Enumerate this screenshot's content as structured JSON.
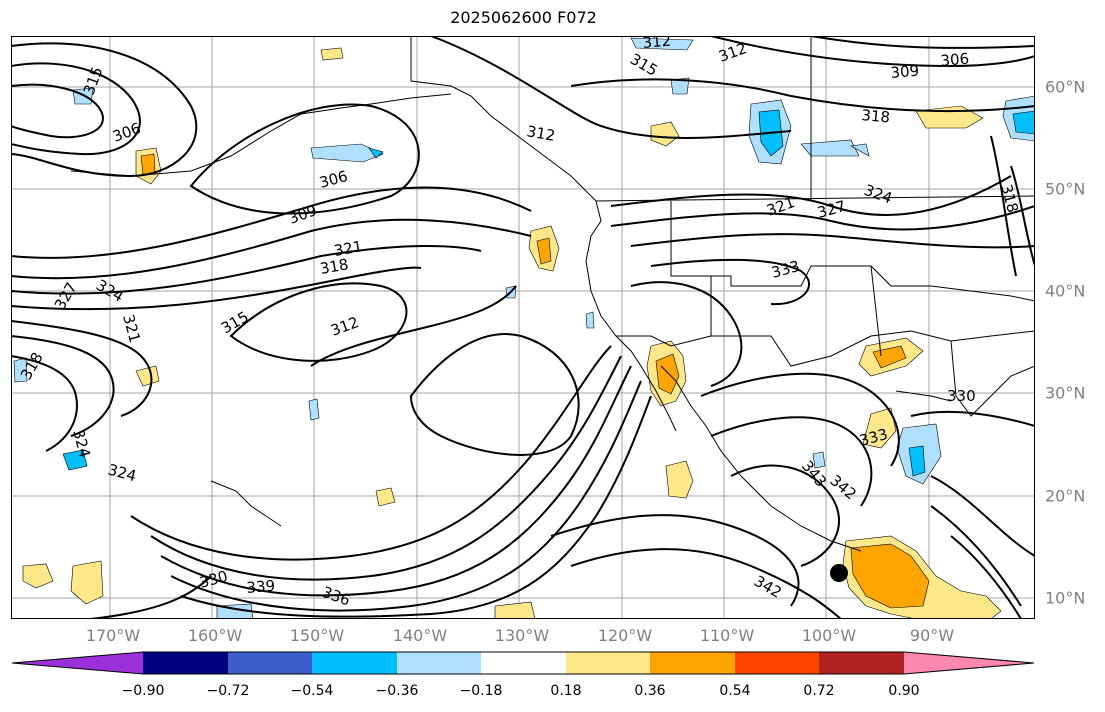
{
  "title": "2025062600 F072",
  "lat_labels": [
    "60°N",
    "50°N",
    "40°N",
    "30°N",
    "20°N",
    "10°N"
  ],
  "lon_labels": [
    "170°W",
    "160°W",
    "150°W",
    "140°W",
    "130°W",
    "120°W",
    "110°W",
    "100°W",
    "90°W"
  ],
  "colorbar": {
    "ticks": [
      "−0.90",
      "−0.72",
      "−0.54",
      "−0.36",
      "−0.18",
      "0.18",
      "0.36",
      "0.54",
      "0.72",
      "0.90"
    ],
    "colors": [
      "#9b30d8",
      "#000080",
      "#3a5fcd",
      "#00bfff",
      "#b0e0ff",
      "#ffffff",
      "#ffe88a",
      "#ffa500",
      "#ff4500",
      "#b22222",
      "#ff88b0"
    ]
  },
  "contour_labels": [
    "315",
    "306",
    "306",
    "309",
    "321",
    "318",
    "315",
    "312",
    "327",
    "324",
    "321",
    "318",
    "324",
    "324",
    "330",
    "339",
    "336",
    "312",
    "315",
    "312",
    "309",
    "306",
    "318",
    "321",
    "327",
    "324",
    "333",
    "318",
    "330",
    "333",
    "343",
    "342",
    "342",
    "312"
  ],
  "colors": {
    "contour": "#000000",
    "land": "#000000",
    "grid": "#808080",
    "fill_orange": "#ffa500",
    "fill_yellow": "#ffe88a",
    "fill_lightblue": "#b0e0ff",
    "fill_blue": "#00bfff"
  }
}
